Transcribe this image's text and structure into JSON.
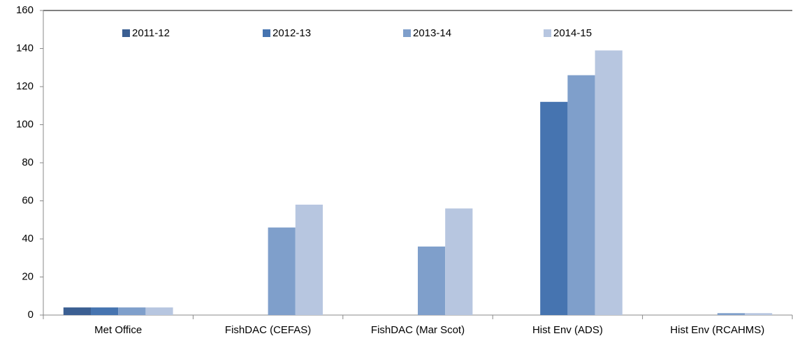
{
  "chart_data": {
    "type": "bar",
    "categories": [
      "Met Office",
      "FishDAC (CEFAS)",
      "FishDAC (Mar Scot)",
      "Hist Env (ADS)",
      "Hist Env (RCAHMS)"
    ],
    "series": [
      {
        "name": "2011-12",
        "color": "#3b5f92",
        "values": [
          4,
          0,
          0,
          0,
          0
        ]
      },
      {
        "name": "2012-13",
        "color": "#4674b0",
        "values": [
          4,
          0,
          0,
          112,
          0
        ]
      },
      {
        "name": "2013-14",
        "color": "#7f9fcb",
        "values": [
          4,
          46,
          36,
          126,
          1
        ]
      },
      {
        "name": "2014-15",
        "color": "#b7c6e0",
        "values": [
          4,
          58,
          56,
          139,
          1
        ]
      }
    ],
    "ylim": [
      0,
      160
    ],
    "yticks": [
      0,
      20,
      40,
      60,
      80,
      100,
      120,
      140,
      160
    ],
    "grid": false,
    "legend": "top"
  }
}
